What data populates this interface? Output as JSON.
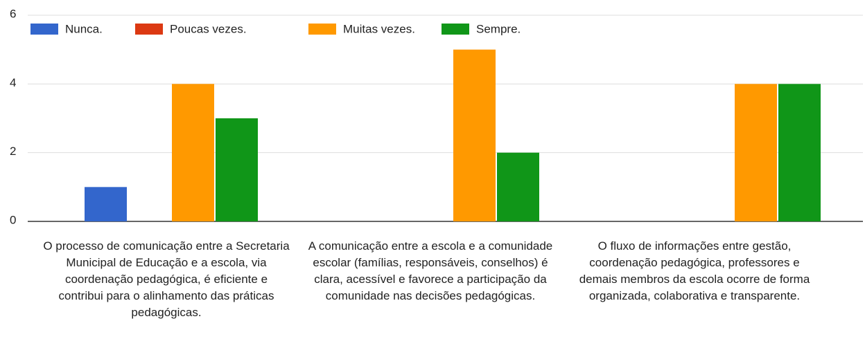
{
  "chart_data": {
    "type": "bar",
    "categories": [
      "O processo de comunicação entre a Secretaria Municipal de Educação e a escola, via coordenação pedagógica, é eficiente e contribui para o alinhamento das práticas pedagógicas.",
      "A comunicação entre a escola e a comunidade escolar (famílias, responsáveis, conselhos) é clara, acessível e favorece a participação da comunidade nas decisões pedagógicas.",
      "O fluxo de informações entre gestão, coordenação pedagógica, professores e demais membros da escola ocorre de forma organizada, colaborativa e transparente."
    ],
    "series": [
      {
        "name": "Nunca.",
        "color": "#3366cc",
        "values": [
          1,
          0,
          0
        ]
      },
      {
        "name": "Poucas vezes.",
        "color": "#dc3912",
        "values": [
          0,
          0,
          0
        ]
      },
      {
        "name": "Muitas vezes.",
        "color": "#ff9900",
        "values": [
          4,
          5,
          4
        ]
      },
      {
        "name": "Sempre.",
        "color": "#109618",
        "values": [
          3,
          2,
          4
        ]
      }
    ],
    "ylim": [
      0,
      6
    ],
    "yticks": [
      0,
      2,
      4,
      6
    ],
    "grid": true,
    "legend": "top"
  }
}
